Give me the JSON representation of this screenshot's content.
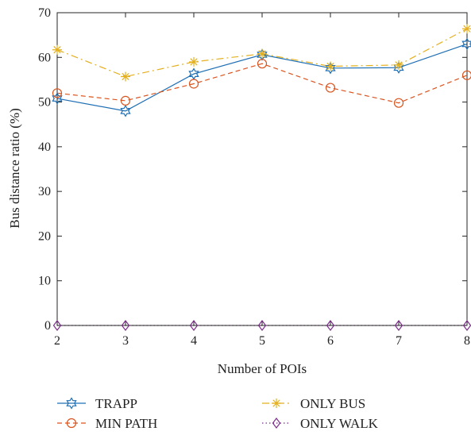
{
  "chart_data": {
    "type": "line",
    "title": "",
    "xlabel": "Number of POIs",
    "ylabel": "Bus distance ratio (%)",
    "x": [
      2,
      3,
      4,
      5,
      6,
      7,
      8
    ],
    "xlim": [
      2,
      8
    ],
    "ylim": [
      0,
      70
    ],
    "xticks": [
      "2",
      "3",
      "4",
      "5",
      "6",
      "7",
      "8"
    ],
    "yticks": [
      "0",
      "10",
      "20",
      "30",
      "40",
      "50",
      "60",
      "70"
    ],
    "grid": false,
    "legend_position": "bottom",
    "series": [
      {
        "name": "TRAPP",
        "color": "#1f6fb4",
        "marker": "hexagram",
        "dash": "",
        "values": [
          50.8,
          48.0,
          56.3,
          60.6,
          57.6,
          57.7,
          63.0
        ]
      },
      {
        "name": "MIN PATH",
        "color": "#d9541e",
        "marker": "circle",
        "dash": "6,4",
        "values": [
          52.0,
          50.3,
          54.1,
          58.6,
          53.2,
          49.8,
          56.0
        ]
      },
      {
        "name": "ONLY BUS",
        "color": "#e4b01f",
        "marker": "asterisk",
        "dash": "9,4,2,4",
        "values": [
          61.7,
          55.7,
          59.0,
          60.8,
          58.0,
          58.3,
          66.4
        ]
      },
      {
        "name": "ONLY WALK",
        "color": "#7e2f8e",
        "marker": "diamond",
        "dash": "1.5,3",
        "values": [
          0,
          0,
          0,
          0,
          0,
          0,
          0
        ]
      }
    ]
  }
}
